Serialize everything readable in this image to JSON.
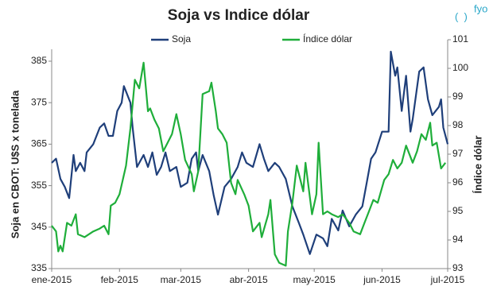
{
  "chart_data": {
    "type": "line",
    "title": "Soja vs Indice dólar",
    "logo": "fyo",
    "y_label": "Soja en CBOT: U$S x tonelada",
    "y2_label": "Índice dólar",
    "xlim": [
      0,
      181
    ],
    "xticks": [
      {
        "value": 0,
        "label": "ene-2015"
      },
      {
        "value": 31,
        "label": "feb-2015"
      },
      {
        "value": 59,
        "label": "mar-2015"
      },
      {
        "value": 90,
        "label": "abr-2015"
      },
      {
        "value": 120,
        "label": "may-2015"
      },
      {
        "value": 151,
        "label": "jun-2015"
      },
      {
        "value": 181,
        "label": "jul-2015"
      }
    ],
    "ylim": [
      335,
      385
    ],
    "yticks": [
      335,
      345,
      355,
      365,
      375,
      385
    ],
    "y2lim": [
      93,
      101
    ],
    "y2ticks": [
      93,
      94,
      95,
      96,
      97,
      98,
      99,
      100,
      101
    ],
    "series": [
      {
        "name": "Soja",
        "color": "#1f3f7a",
        "x": [
          0,
          2,
          4,
          6,
          8,
          10,
          11,
          13,
          15,
          16,
          19,
          22,
          24,
          26,
          28,
          30,
          32,
          33,
          36,
          37,
          39,
          42,
          44,
          46,
          48,
          50,
          52,
          54,
          57,
          59,
          62,
          64,
          66,
          67,
          69,
          72,
          74,
          76,
          79,
          82,
          85,
          87,
          89,
          92,
          95,
          97,
          99,
          102,
          104,
          107,
          110,
          113,
          115,
          118,
          121,
          124,
          126,
          128,
          131,
          133,
          136,
          139,
          142,
          144,
          146,
          148,
          151,
          154,
          155,
          157,
          158,
          160,
          162,
          164,
          165,
          168,
          170,
          172,
          174,
          177,
          178,
          179,
          181
        ],
        "values": [
          360.5,
          361.5,
          356.6,
          354.7,
          352,
          362.4,
          358.5,
          360.5,
          358.5,
          363,
          365,
          369,
          370,
          367,
          367,
          373,
          375,
          379,
          375,
          369,
          359.5,
          362.4,
          359.5,
          363,
          357.6,
          359.5,
          363,
          358.5,
          359.5,
          354.7,
          355.7,
          361.5,
          363,
          358.5,
          362.4,
          358.5,
          352.8,
          348,
          354.7,
          356.6,
          359.5,
          363,
          360.5,
          359.5,
          365,
          361.5,
          358.5,
          360.5,
          359.5,
          356.6,
          350,
          346,
          343.2,
          338.5,
          343.2,
          342.3,
          340.4,
          347,
          344.2,
          349,
          345.2,
          348,
          350,
          355.7,
          361.5,
          363,
          368,
          368,
          387.3,
          381.5,
          383.5,
          373,
          381.5,
          368,
          371,
          382.5,
          383.5,
          375.8,
          372,
          374,
          375.8,
          369,
          365
        ]
      },
      {
        "name": "Índice dólar",
        "color": "#1fae3a",
        "axis": "y2",
        "x": [
          0,
          2,
          3,
          4,
          5,
          7,
          9,
          11,
          12,
          15,
          17,
          19,
          22,
          24,
          26,
          27,
          29,
          31,
          34,
          36,
          38,
          40,
          42,
          44,
          45,
          47,
          49,
          51,
          53,
          55,
          57,
          59,
          61,
          64,
          65,
          67,
          69,
          72,
          73,
          75,
          76,
          78,
          80,
          82,
          84,
          85,
          88,
          90,
          92,
          95,
          96,
          99,
          100,
          102,
          104,
          107,
          108,
          110,
          112,
          115,
          116,
          119,
          121,
          122,
          124,
          126,
          128,
          131,
          133,
          136,
          138,
          141,
          143,
          145,
          147,
          149,
          152,
          154,
          156,
          158,
          160,
          162,
          165,
          167,
          169,
          171,
          173,
          174,
          176,
          178,
          180
        ],
        "values": [
          94.5,
          94.3,
          93.6,
          93.8,
          93.6,
          94.6,
          94.5,
          94.9,
          94.2,
          94.1,
          94.2,
          94.3,
          94.4,
          94.5,
          94.2,
          95.2,
          95.3,
          95.6,
          96.6,
          97.9,
          99.6,
          99.3,
          100.2,
          98.5,
          98.6,
          98.2,
          97.9,
          97.1,
          97.4,
          97.7,
          98.4,
          97.7,
          96.8,
          96.3,
          95.7,
          96.4,
          99.1,
          99.2,
          99.5,
          98.5,
          97.9,
          97.7,
          97.4,
          96,
          95.6,
          96.1,
          95.6,
          95.2,
          94.3,
          94.6,
          94.1,
          94.9,
          95.4,
          93.5,
          93.2,
          93.1,
          94.3,
          95.3,
          96.6,
          95.7,
          96.7,
          94.9,
          95.6,
          97.4,
          94.9,
          95,
          94.9,
          94.8,
          94.9,
          94.6,
          94.3,
          94.2,
          94.6,
          95,
          95.4,
          95.3,
          96.1,
          96.3,
          96.8,
          96.5,
          96.7,
          97.3,
          96.7,
          97.1,
          97.7,
          97.5,
          98.1,
          97.3,
          97.4,
          96.5,
          96.7
        ]
      }
    ]
  }
}
